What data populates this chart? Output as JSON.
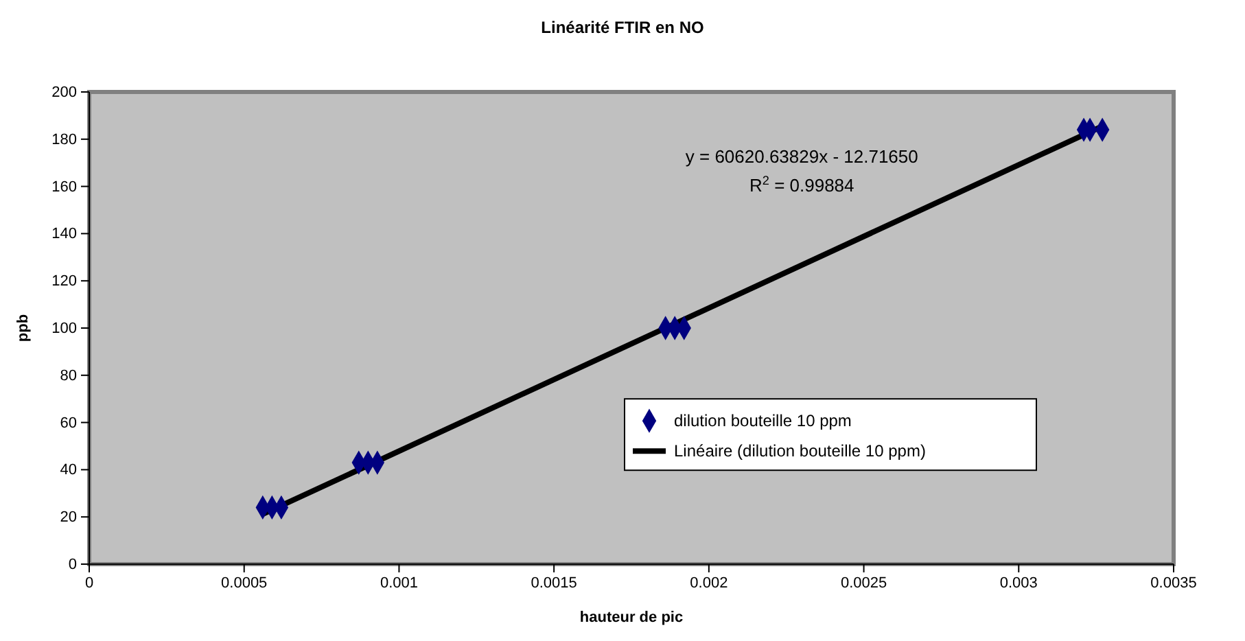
{
  "chart_data": {
    "type": "scatter",
    "title": "Linéarité FTIR en NO",
    "xlabel": "hauteur de pic",
    "ylabel": "ppb",
    "series": [
      {
        "name": "dilution bouteille 10 ppm",
        "color": "#000080",
        "marker": "diamond",
        "x": [
          0.00056,
          0.00059,
          0.00062,
          0.00087,
          0.0009,
          0.00093,
          0.00186,
          0.00189,
          0.00192,
          0.00321,
          0.00323,
          0.00327
        ],
        "values": [
          24,
          24,
          24,
          43,
          43,
          43,
          100,
          100,
          100,
          184,
          184,
          184
        ]
      },
      {
        "name": "Linéaire (dilution bouteille 10 ppm)",
        "type": "line",
        "color": "#000000",
        "marker": "none",
        "line_style": "solid",
        "x": [
          0.00056,
          0.00327
        ],
        "values": [
          21.2,
          185.5
        ]
      }
    ],
    "annotations": [
      "y = 60620.63829x - 12.71650",
      "R$^{2}$ = 0.99884"
    ],
    "xlim": [
      0,
      0.0035
    ],
    "xticks": [
      0,
      0.0005,
      0.001,
      0.0015,
      0.002,
      0.0025,
      0.003,
      0.0035
    ],
    "ylim": [
      0,
      200
    ],
    "yticks": [
      0,
      20,
      40,
      60,
      80,
      100,
      120,
      140,
      160,
      180,
      200
    ],
    "grid": false,
    "legend": "right"
  }
}
